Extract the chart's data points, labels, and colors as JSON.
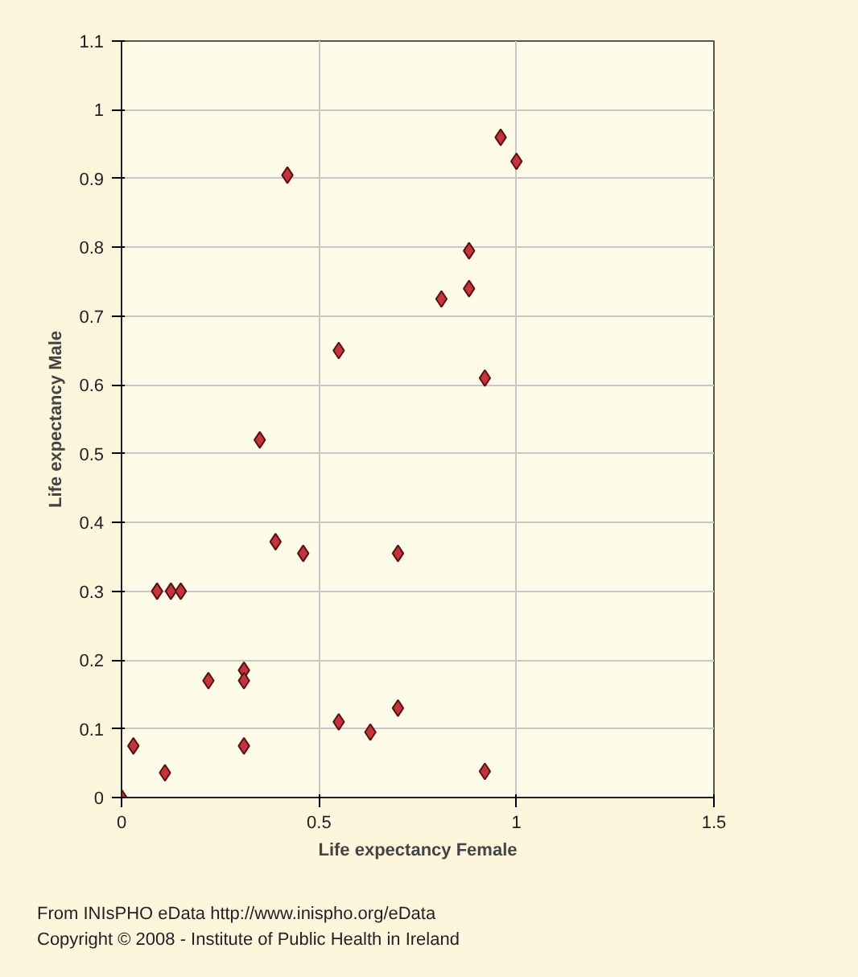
{
  "chart_data": {
    "type": "scatter",
    "xlabel": "Life expectancy Female",
    "ylabel": "Life expectancy Male",
    "x": [
      0,
      0.03,
      0.11,
      0.09,
      0.125,
      0.15,
      0.22,
      0.31,
      0.31,
      0.31,
      0.35,
      0.39,
      0.46,
      0.42,
      0.55,
      0.55,
      0.63,
      0.7,
      0.7,
      0.81,
      0.88,
      0.88,
      0.92,
      0.92,
      0.96,
      1.0
    ],
    "series": [
      {
        "color": "#c4343c",
        "values": [
          0,
          0.075,
          0.036,
          0.3,
          0.3,
          0.3,
          0.17,
          0.185,
          0.17,
          0.075,
          0.52,
          0.372,
          0.355,
          0.905,
          0.65,
          0.11,
          0.095,
          0.355,
          0.13,
          0.725,
          0.74,
          0.795,
          0.61,
          0.038,
          0.96,
          0.925
        ]
      }
    ],
    "xlim": [
      0,
      1.5
    ],
    "xticks": [
      0,
      0.5,
      1,
      1.5
    ],
    "ylim": [
      0,
      1.1
    ],
    "yticks": [
      0,
      0.1,
      0.2,
      0.3,
      0.4,
      0.5,
      0.6,
      0.7,
      0.8,
      0.9,
      1,
      1.1
    ],
    "grid": true,
    "marker": "diamond",
    "annotations": [
      "From INIsPHO eData http://www.inispho.org/eData",
      "Copyright © 2008 - Institute of Public Health in Ireland"
    ]
  }
}
